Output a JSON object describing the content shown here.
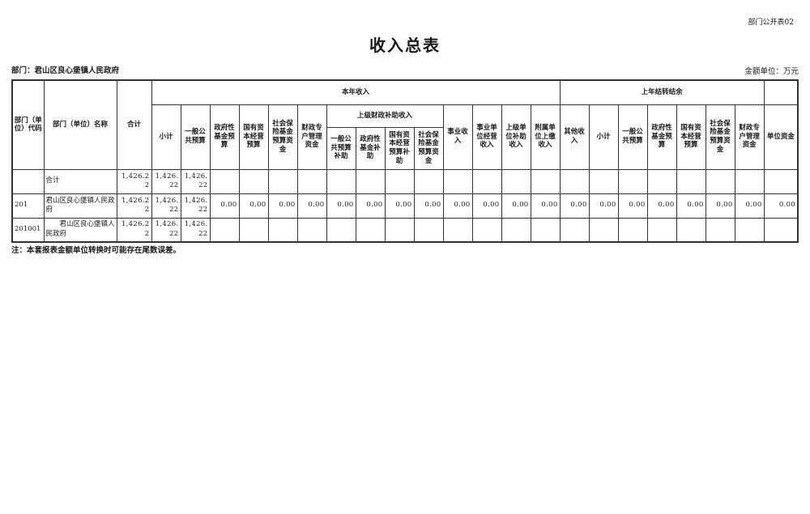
{
  "page": {
    "doc_label": "部门公开表02",
    "title": "收入总表",
    "department": "部门：君山区良心堡镇人民政府",
    "unit": "金额单位：万元",
    "note": "注：本套报表金额单位转换时可能存在尾数误差。"
  },
  "table": {
    "header": {
      "code": "部门（单位）代码",
      "name": "部门（单位）名称",
      "total": "合计",
      "current_year": {
        "label": "本年收入",
        "plain_cols": [
          "小计",
          "一般公共预算",
          "政府性基金预算",
          "国有资本经营预算",
          "社会保险基金预算资金",
          "财政专户管理资金"
        ],
        "subsidy": {
          "label": "上级财政补助收入",
          "cols": [
            "一般公共预算补助",
            "政府性基金补助",
            "国有资本经营预算补助",
            "社会保险基金预算资金"
          ]
        },
        "tail_cols": [
          "事业收入",
          "事业单位经营收入",
          "上级单位补助收入",
          "附属单位上缴收入",
          "其他收入"
        ]
      },
      "carryover": {
        "label": "上年结转结余",
        "cols": [
          "小计",
          "一般公共预算",
          "政府性基金预算",
          "国有资本经营预算",
          "社会保险基金预算资金",
          "财政专户管理资金",
          "单位资金"
        ]
      }
    },
    "rows": [
      {
        "code": "",
        "name": "合计",
        "total": "1,426.22",
        "values": [
          "1,426.22",
          "1,426.22",
          "",
          "",
          "",
          "",
          "",
          "",
          "",
          "",
          "",
          "",
          "",
          "",
          "",
          "",
          "",
          "",
          "",
          "",
          "",
          ""
        ]
      },
      {
        "code": "201",
        "name": "君山区良心堡镇人民政府",
        "total": "1,426.22",
        "values": [
          "1,426.22",
          "1,426.22",
          "0.00",
          "0.00",
          "0.00",
          "0.00",
          "0.00",
          "0.00",
          "0.00",
          "0.00",
          "0.00",
          "0.00",
          "0.00",
          "0.00",
          "0.00",
          "0.00",
          "0.00",
          "0.00",
          "0.00",
          "0.00",
          "0.00",
          "0.00"
        ]
      },
      {
        "code": "201001",
        "name": "　　君山区良心堡镇人民政府",
        "total": "1,426.22",
        "values": [
          "1,426.22",
          "1,426.22",
          "",
          "",
          "",
          "",
          "",
          "",
          "",
          "",
          "",
          "",
          "",
          "",
          "",
          "",
          "",
          "",
          "",
          "",
          "",
          ""
        ]
      }
    ]
  }
}
